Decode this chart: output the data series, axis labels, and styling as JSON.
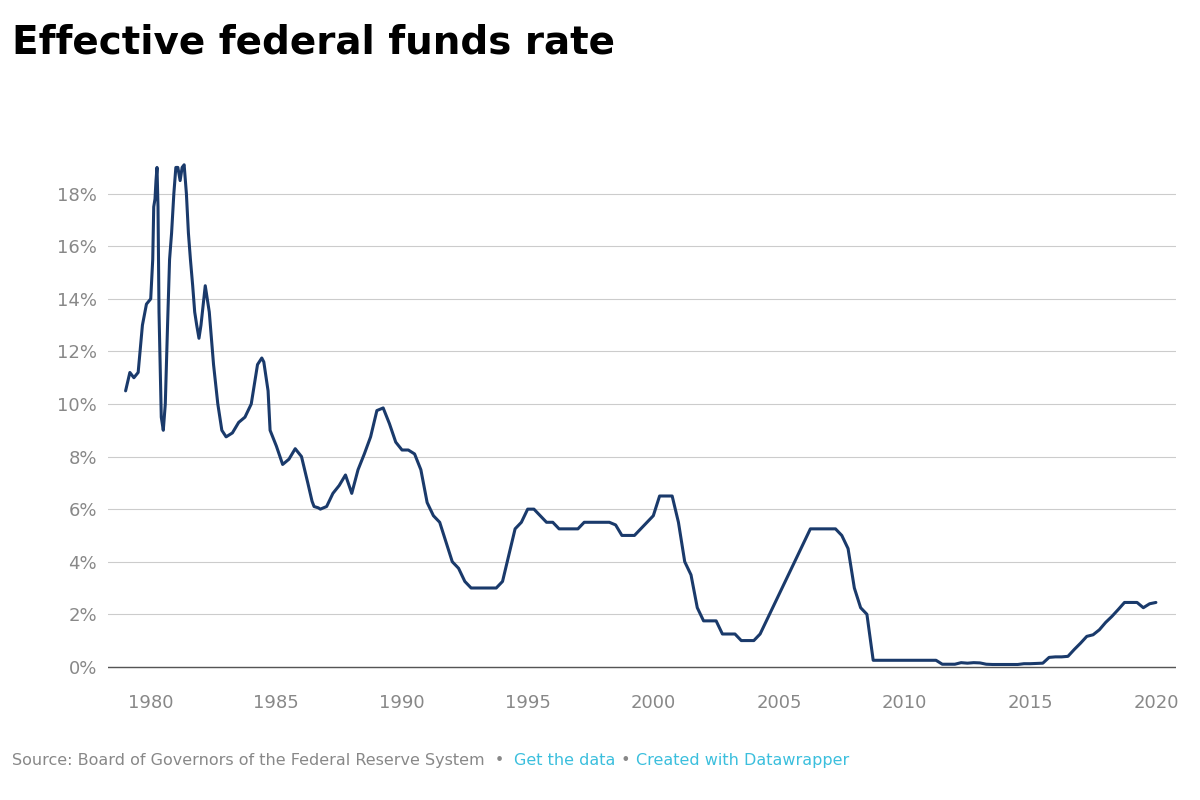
{
  "title": "Effective federal funds rate",
  "line_color": "#1a3a6b",
  "background_color": "#ffffff",
  "grid_color": "#cccccc",
  "axis_color": "#888888",
  "title_color": "#000000",
  "source_text": "Source: Board of Governors of the Federal Reserve System  •  ",
  "source_link1": "Get the data",
  "source_sep": " • ",
  "source_link2": "Created with Datawrapper",
  "source_color_plain": "#888888",
  "source_color_link": "#3bbfdd",
  "yticks": [
    0,
    2,
    4,
    6,
    8,
    10,
    12,
    14,
    16,
    18
  ],
  "xticks": [
    1980,
    1985,
    1990,
    1995,
    2000,
    2005,
    2010,
    2015,
    2020
  ],
  "ylim": [
    -0.5,
    20.5
  ],
  "xlim": [
    1978.3,
    2020.8
  ],
  "title_fontsize": 28,
  "tick_fontsize": 13,
  "source_fontsize": 11.5,
  "line_width": 2.2,
  "data": [
    [
      1979.0,
      10.5
    ],
    [
      1979.17,
      11.2
    ],
    [
      1979.33,
      11.0
    ],
    [
      1979.5,
      11.2
    ],
    [
      1979.67,
      13.0
    ],
    [
      1979.83,
      13.8
    ],
    [
      1980.0,
      14.0
    ],
    [
      1980.08,
      15.5
    ],
    [
      1980.12,
      17.5
    ],
    [
      1980.17,
      17.8
    ],
    [
      1980.21,
      18.5
    ],
    [
      1980.25,
      19.0
    ],
    [
      1980.29,
      17.5
    ],
    [
      1980.33,
      13.5
    ],
    [
      1980.42,
      9.5
    ],
    [
      1980.5,
      9.0
    ],
    [
      1980.58,
      10.0
    ],
    [
      1980.67,
      13.0
    ],
    [
      1980.75,
      15.5
    ],
    [
      1980.83,
      16.5
    ],
    [
      1980.92,
      18.0
    ],
    [
      1981.0,
      19.0
    ],
    [
      1981.08,
      19.0
    ],
    [
      1981.17,
      18.5
    ],
    [
      1981.25,
      19.0
    ],
    [
      1981.33,
      19.1
    ],
    [
      1981.42,
      18.0
    ],
    [
      1981.5,
      16.5
    ],
    [
      1981.58,
      15.5
    ],
    [
      1981.67,
      14.5
    ],
    [
      1981.75,
      13.5
    ],
    [
      1981.83,
      13.0
    ],
    [
      1981.92,
      12.5
    ],
    [
      1982.0,
      13.0
    ],
    [
      1982.17,
      14.5
    ],
    [
      1982.33,
      13.5
    ],
    [
      1982.5,
      11.5
    ],
    [
      1982.67,
      10.0
    ],
    [
      1982.83,
      9.0
    ],
    [
      1983.0,
      8.75
    ],
    [
      1983.25,
      8.9
    ],
    [
      1983.5,
      9.3
    ],
    [
      1983.75,
      9.5
    ],
    [
      1984.0,
      10.0
    ],
    [
      1984.25,
      11.5
    ],
    [
      1984.42,
      11.75
    ],
    [
      1984.5,
      11.6
    ],
    [
      1984.67,
      10.5
    ],
    [
      1984.75,
      9.0
    ],
    [
      1985.0,
      8.4
    ],
    [
      1985.25,
      7.7
    ],
    [
      1985.5,
      7.9
    ],
    [
      1985.75,
      8.3
    ],
    [
      1986.0,
      8.0
    ],
    [
      1986.25,
      7.0
    ],
    [
      1986.42,
      6.3
    ],
    [
      1986.5,
      6.1
    ],
    [
      1986.67,
      6.05
    ],
    [
      1986.75,
      6.0
    ],
    [
      1987.0,
      6.1
    ],
    [
      1987.25,
      6.6
    ],
    [
      1987.5,
      6.9
    ],
    [
      1987.75,
      7.3
    ],
    [
      1988.0,
      6.6
    ],
    [
      1988.25,
      7.5
    ],
    [
      1988.5,
      8.1
    ],
    [
      1988.75,
      8.75
    ],
    [
      1989.0,
      9.75
    ],
    [
      1989.25,
      9.85
    ],
    [
      1989.5,
      9.25
    ],
    [
      1989.75,
      8.55
    ],
    [
      1990.0,
      8.25
    ],
    [
      1990.25,
      8.25
    ],
    [
      1990.5,
      8.1
    ],
    [
      1990.75,
      7.5
    ],
    [
      1991.0,
      6.25
    ],
    [
      1991.25,
      5.75
    ],
    [
      1991.5,
      5.5
    ],
    [
      1991.75,
      4.75
    ],
    [
      1992.0,
      4.0
    ],
    [
      1992.25,
      3.75
    ],
    [
      1992.5,
      3.25
    ],
    [
      1992.75,
      3.0
    ],
    [
      1993.0,
      3.0
    ],
    [
      1993.25,
      3.0
    ],
    [
      1993.5,
      3.0
    ],
    [
      1993.75,
      3.0
    ],
    [
      1994.0,
      3.25
    ],
    [
      1994.25,
      4.25
    ],
    [
      1994.5,
      5.25
    ],
    [
      1994.75,
      5.5
    ],
    [
      1995.0,
      6.0
    ],
    [
      1995.25,
      6.0
    ],
    [
      1995.5,
      5.75
    ],
    [
      1995.75,
      5.5
    ],
    [
      1996.0,
      5.5
    ],
    [
      1996.25,
      5.25
    ],
    [
      1996.5,
      5.25
    ],
    [
      1996.75,
      5.25
    ],
    [
      1997.0,
      5.25
    ],
    [
      1997.25,
      5.5
    ],
    [
      1997.5,
      5.5
    ],
    [
      1997.75,
      5.5
    ],
    [
      1998.0,
      5.5
    ],
    [
      1998.25,
      5.5
    ],
    [
      1998.5,
      5.4
    ],
    [
      1998.75,
      5.0
    ],
    [
      1999.0,
      5.0
    ],
    [
      1999.25,
      5.0
    ],
    [
      1999.5,
      5.25
    ],
    [
      1999.75,
      5.5
    ],
    [
      2000.0,
      5.75
    ],
    [
      2000.25,
      6.5
    ],
    [
      2000.5,
      6.5
    ],
    [
      2000.75,
      6.5
    ],
    [
      2001.0,
      5.5
    ],
    [
      2001.25,
      4.0
    ],
    [
      2001.5,
      3.5
    ],
    [
      2001.75,
      2.25
    ],
    [
      2002.0,
      1.75
    ],
    [
      2002.25,
      1.75
    ],
    [
      2002.5,
      1.75
    ],
    [
      2002.75,
      1.25
    ],
    [
      2003.0,
      1.25
    ],
    [
      2003.25,
      1.25
    ],
    [
      2003.5,
      1.0
    ],
    [
      2003.75,
      1.0
    ],
    [
      2004.0,
      1.0
    ],
    [
      2004.25,
      1.25
    ],
    [
      2004.5,
      1.75
    ],
    [
      2004.75,
      2.25
    ],
    [
      2005.0,
      2.75
    ],
    [
      2005.25,
      3.25
    ],
    [
      2005.5,
      3.75
    ],
    [
      2005.75,
      4.25
    ],
    [
      2006.0,
      4.75
    ],
    [
      2006.25,
      5.25
    ],
    [
      2006.5,
      5.25
    ],
    [
      2006.75,
      5.25
    ],
    [
      2007.0,
      5.25
    ],
    [
      2007.25,
      5.25
    ],
    [
      2007.5,
      5.0
    ],
    [
      2007.75,
      4.5
    ],
    [
      2008.0,
      3.0
    ],
    [
      2008.25,
      2.25
    ],
    [
      2008.5,
      2.0
    ],
    [
      2008.75,
      0.25
    ],
    [
      2009.0,
      0.25
    ],
    [
      2009.25,
      0.25
    ],
    [
      2009.5,
      0.25
    ],
    [
      2009.75,
      0.25
    ],
    [
      2010.0,
      0.25
    ],
    [
      2010.25,
      0.25
    ],
    [
      2010.5,
      0.25
    ],
    [
      2010.75,
      0.25
    ],
    [
      2011.0,
      0.25
    ],
    [
      2011.25,
      0.25
    ],
    [
      2011.5,
      0.1
    ],
    [
      2011.75,
      0.1
    ],
    [
      2012.0,
      0.1
    ],
    [
      2012.25,
      0.16
    ],
    [
      2012.5,
      0.14
    ],
    [
      2012.75,
      0.16
    ],
    [
      2013.0,
      0.15
    ],
    [
      2013.25,
      0.1
    ],
    [
      2013.5,
      0.09
    ],
    [
      2013.75,
      0.09
    ],
    [
      2014.0,
      0.09
    ],
    [
      2014.25,
      0.09
    ],
    [
      2014.5,
      0.09
    ],
    [
      2014.75,
      0.12
    ],
    [
      2015.0,
      0.12
    ],
    [
      2015.25,
      0.13
    ],
    [
      2015.5,
      0.14
    ],
    [
      2015.75,
      0.36
    ],
    [
      2016.0,
      0.38
    ],
    [
      2016.25,
      0.38
    ],
    [
      2016.5,
      0.4
    ],
    [
      2016.75,
      0.66
    ],
    [
      2017.0,
      0.9
    ],
    [
      2017.25,
      1.16
    ],
    [
      2017.5,
      1.22
    ],
    [
      2017.75,
      1.41
    ],
    [
      2018.0,
      1.69
    ],
    [
      2018.25,
      1.92
    ],
    [
      2018.5,
      2.18
    ],
    [
      2018.75,
      2.45
    ],
    [
      2019.0,
      2.45
    ],
    [
      2019.25,
      2.45
    ],
    [
      2019.5,
      2.25
    ],
    [
      2019.75,
      2.4
    ],
    [
      2020.0,
      2.45
    ]
  ]
}
